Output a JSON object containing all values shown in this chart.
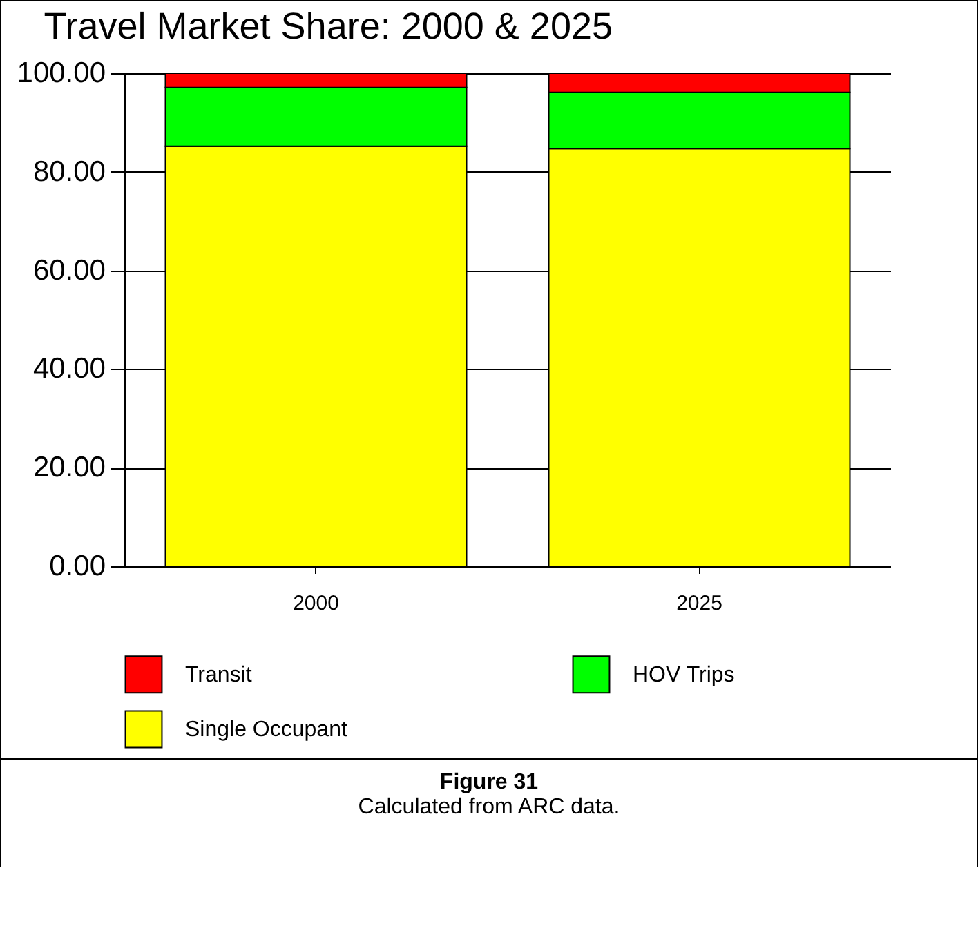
{
  "chart_data": {
    "type": "bar",
    "title": "Travel Market Share: 2000 & 2025",
    "categories": [
      "2000",
      "2025"
    ],
    "stacked": true,
    "series": [
      {
        "name": "Single Occupant",
        "color": "#ffff00",
        "values": [
          85.2,
          84.7
        ]
      },
      {
        "name": "HOV Trips",
        "color": "#00ff00",
        "values": [
          11.9,
          11.4
        ]
      },
      {
        "name": "Transit",
        "color": "#ff0000",
        "values": [
          2.9,
          3.9
        ]
      }
    ],
    "ylim": [
      0,
      100
    ],
    "yticks": [
      {
        "value": 0,
        "label": "0.00"
      },
      {
        "value": 20,
        "label": "20.00"
      },
      {
        "value": 40,
        "label": "40.00"
      },
      {
        "value": 60,
        "label": "60.00"
      },
      {
        "value": 80,
        "label": "80.00"
      },
      {
        "value": 100,
        "label": "100.00"
      }
    ],
    "grid": "y",
    "legend": "bottom",
    "annotations": [
      "Figure 31",
      "Calculated from ARC data."
    ]
  }
}
